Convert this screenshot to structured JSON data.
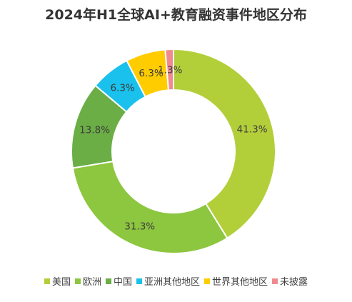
{
  "chart_data": {
    "type": "pie",
    "title": "2024年H1全球AI+教育融资事件地区分布",
    "categories": [
      "美国",
      "欧洲",
      "中国",
      "亚洲其他地区",
      "世界其他地区",
      "未披露"
    ],
    "values": [
      41.3,
      31.3,
      13.8,
      6.3,
      6.3,
      1.3
    ],
    "value_labels": [
      "41.3%",
      "31.3%",
      "13.8%",
      "6.3%",
      "6.3%",
      "1.3%"
    ],
    "colors": [
      "#b2cf3a",
      "#8dc63f",
      "#6aae45",
      "#19c1ec",
      "#ffcc00",
      "#f08a8f"
    ],
    "donut": true,
    "legend_position": "bottom"
  }
}
